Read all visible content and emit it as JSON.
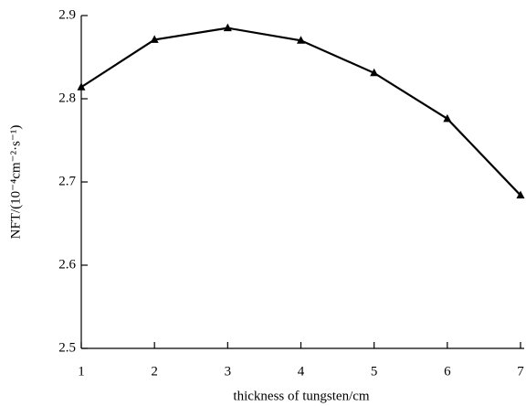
{
  "chart_data": {
    "type": "line",
    "x_label": "thickness of tungsten/cm",
    "y_label": "NFT/(10⁻⁴cm⁻²·s⁻¹)",
    "x": [
      1,
      2,
      3,
      4,
      5,
      6,
      7
    ],
    "series": [
      {
        "color": "#000000",
        "values": [
          2.814,
          2.871,
          2.885,
          2.87,
          2.831,
          2.776,
          2.684
        ]
      }
    ],
    "xlim": [
      1,
      7
    ],
    "xticks": [
      1,
      2,
      3,
      4,
      5,
      6,
      7
    ],
    "ylim": [
      2.5,
      2.9
    ],
    "yticks": [
      2.5,
      2.6,
      2.7,
      2.8,
      2.9
    ],
    "marker": "triangle",
    "grid": false
  }
}
